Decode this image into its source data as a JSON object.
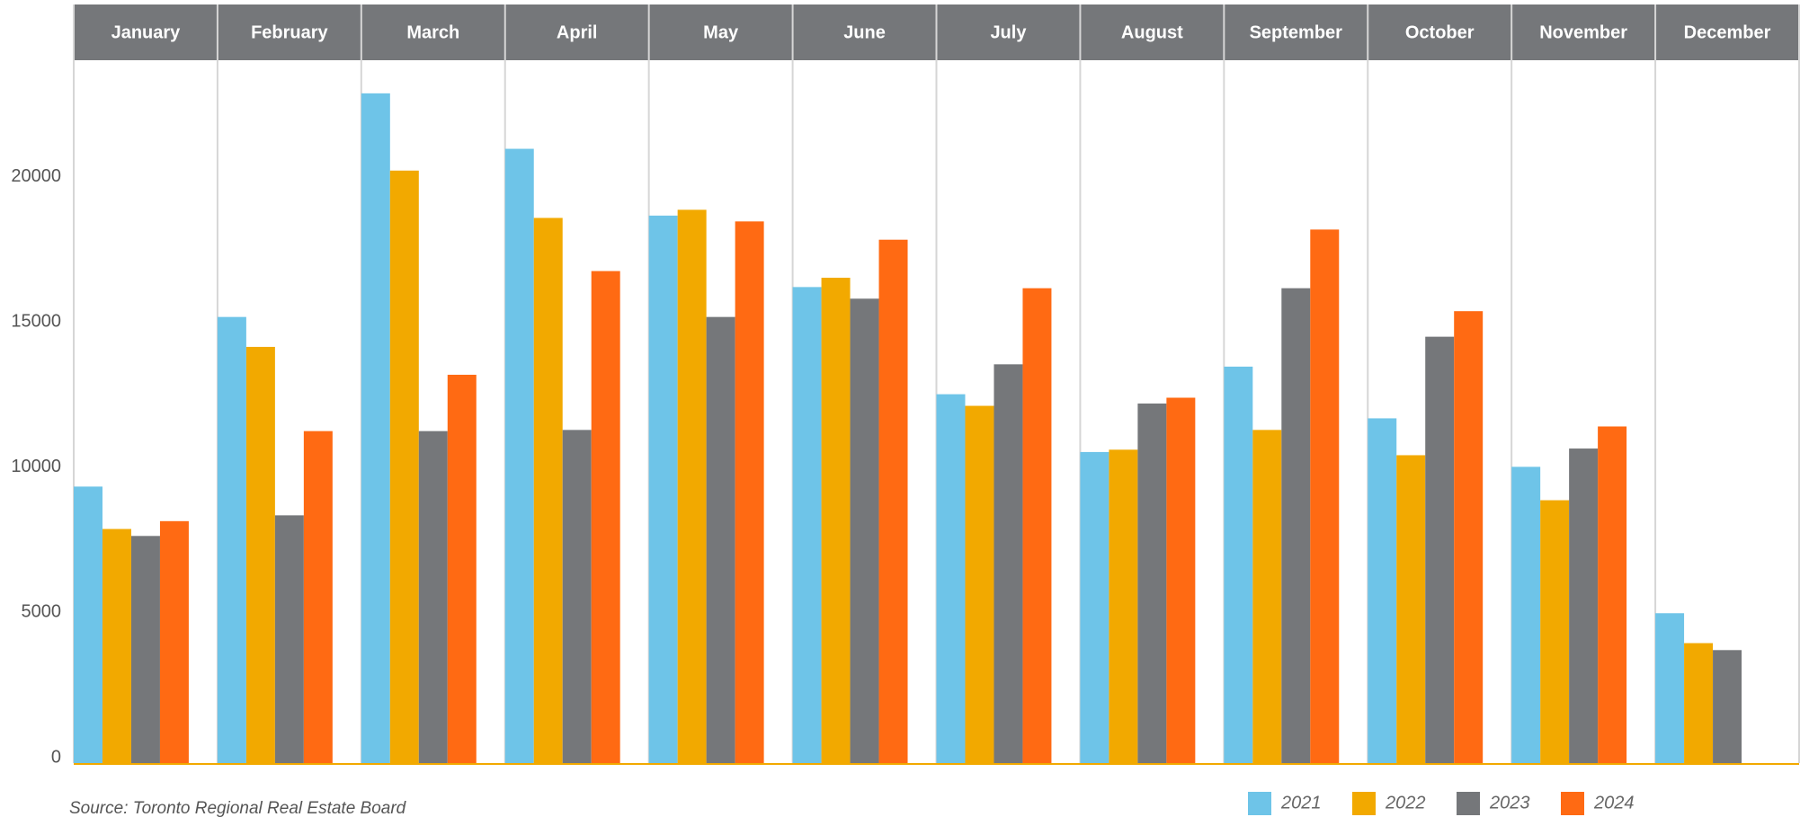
{
  "chart_data": {
    "type": "bar",
    "categories": [
      "January",
      "February",
      "March",
      "April",
      "May",
      "June",
      "July",
      "August",
      "September",
      "October",
      "November",
      "December"
    ],
    "series": [
      {
        "name": "2021",
        "color": "#6ec4e8",
        "values": [
          9520,
          15360,
          23060,
          21150,
          18850,
          16390,
          12700,
          10710,
          13650,
          11870,
          10200,
          5160
        ]
      },
      {
        "name": "2022",
        "color": "#f2a900",
        "values": [
          8060,
          14330,
          20400,
          18770,
          19050,
          16710,
          12300,
          10790,
          11470,
          10600,
          9050,
          4130
        ]
      },
      {
        "name": "2023",
        "color": "#75777a",
        "values": [
          7820,
          8530,
          11430,
          11470,
          15360,
          15990,
          13730,
          12380,
          16350,
          14680,
          10830,
          3890
        ]
      },
      {
        "name": "2024",
        "color": "#ff6a13",
        "values": [
          8330,
          11430,
          13370,
          16940,
          18650,
          18020,
          16350,
          12580,
          18370,
          15560,
          11590,
          null
        ]
      }
    ],
    "ylim": [
      0,
      24200
    ],
    "yticks": [
      0,
      5000,
      10000,
      15000,
      20000
    ],
    "grid": false,
    "legend": "bottom-right",
    "source": "Source: Toronto Regional Real Estate Board"
  }
}
